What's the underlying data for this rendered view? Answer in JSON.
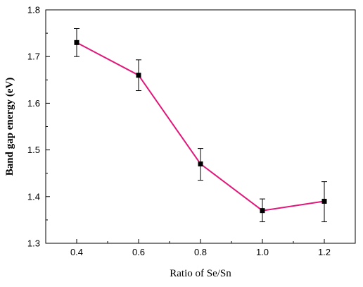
{
  "chart_data": {
    "type": "line",
    "title": "",
    "xlabel": "Ratio of Se/Sn",
    "ylabel": "Band gap energy (eV)",
    "xlim": [
      0.3,
      1.3
    ],
    "ylim": [
      1.3,
      1.8
    ],
    "x_ticks": [
      "0.4",
      "0.6",
      "0.8",
      "1.0",
      "1.2"
    ],
    "y_ticks": [
      "1.3",
      "1.4",
      "1.5",
      "1.6",
      "1.7",
      "1.8"
    ],
    "grid": false,
    "legend": "none",
    "series": [
      {
        "color": "#e0187a",
        "marker_color": "#000000",
        "marker": "square",
        "points": [
          {
            "x": 0.4,
            "y": 1.73,
            "err_low": 1.7,
            "err_high": 1.76
          },
          {
            "x": 0.6,
            "y": 1.66,
            "err_low": 1.627,
            "err_high": 1.693
          },
          {
            "x": 0.8,
            "y": 1.47,
            "err_low": 1.435,
            "err_high": 1.503
          },
          {
            "x": 1.0,
            "y": 1.37,
            "err_low": 1.346,
            "err_high": 1.395
          },
          {
            "x": 1.2,
            "y": 1.39,
            "err_low": 1.346,
            "err_high": 1.432
          }
        ]
      }
    ]
  }
}
